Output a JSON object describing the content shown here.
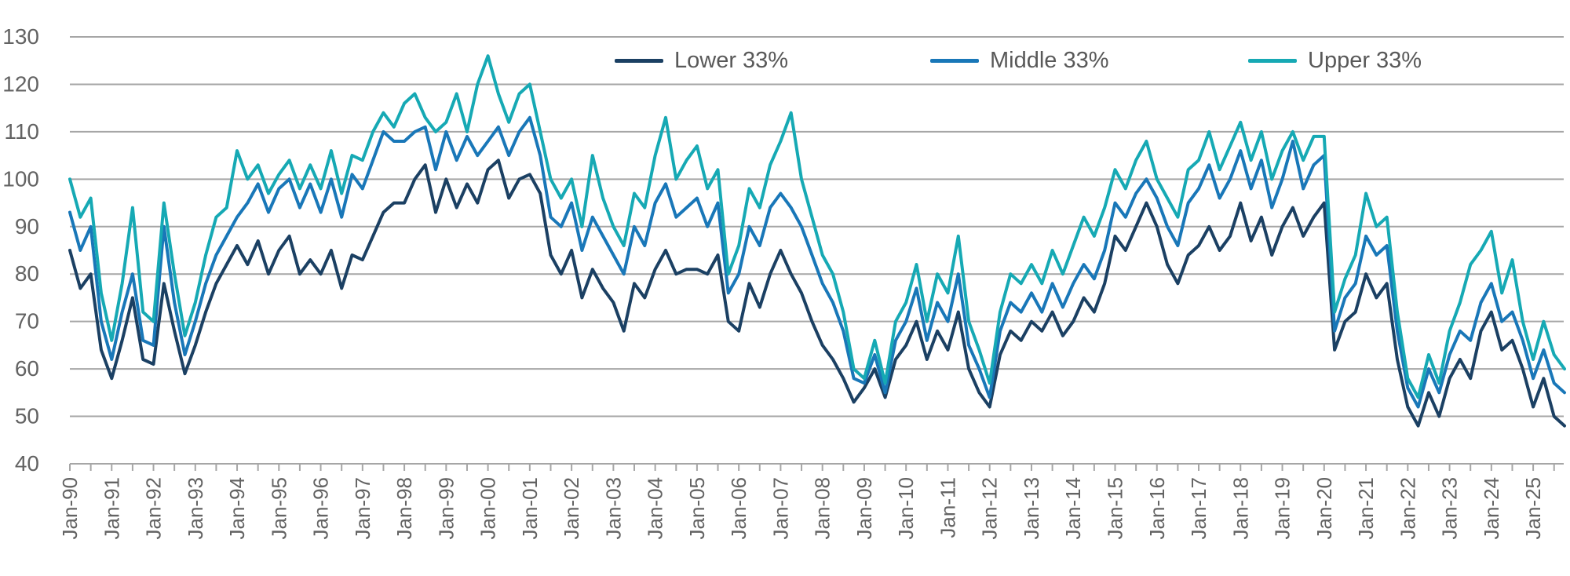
{
  "chart_data": {
    "type": "line",
    "title": "",
    "xlabel": "",
    "ylabel": "",
    "ylim": [
      40,
      130
    ],
    "grid": "horizontal",
    "legend_position": "top",
    "axis_color": "#a6a6a6",
    "label_color": "#636363",
    "x_start_year": 1990,
    "points_per_year": 4,
    "x_tick_labels": [
      "Jan-90",
      "Jan-91",
      "Jan-92",
      "Jan-93",
      "Jan-94",
      "Jan-95",
      "Jan-96",
      "Jan-97",
      "Jan-98",
      "Jan-99",
      "Jan-00",
      "Jan-01",
      "Jan-02",
      "Jan-03",
      "Jan-04",
      "Jan-05",
      "Jan-06",
      "Jan-07",
      "Jan-08",
      "Jan-09",
      "Jan-10",
      "Jan-11",
      "Jan-12",
      "Jan-13",
      "Jan-14",
      "Jan-15",
      "Jan-16",
      "Jan-17",
      "Jan-18",
      "Jan-19",
      "Jan-20",
      "Jan-21",
      "Jan-22",
      "Jan-23",
      "Jan-24",
      "Jan-25"
    ],
    "y_ticks": [
      130,
      120,
      110,
      100,
      90,
      80,
      70,
      60,
      50,
      40
    ],
    "series": [
      {
        "name": "Lower 33%",
        "color": "#1b4063",
        "values": [
          85,
          77,
          80,
          64,
          58,
          66,
          75,
          62,
          61,
          78,
          68,
          59,
          65,
          72,
          78,
          82,
          86,
          82,
          87,
          80,
          85,
          88,
          80,
          83,
          80,
          85,
          77,
          84,
          83,
          88,
          93,
          95,
          95,
          100,
          103,
          93,
          100,
          94,
          99,
          95,
          102,
          104,
          96,
          100,
          101,
          97,
          84,
          80,
          85,
          75,
          81,
          77,
          74,
          68,
          78,
          75,
          81,
          85,
          80,
          81,
          81,
          80,
          84,
          70,
          68,
          78,
          73,
          80,
          85,
          80,
          76,
          70,
          65,
          62,
          58,
          53,
          56,
          60,
          54,
          62,
          65,
          70,
          62,
          68,
          64,
          72,
          60,
          55,
          52,
          63,
          68,
          66,
          70,
          68,
          72,
          67,
          70,
          75,
          72,
          78,
          88,
          85,
          90,
          95,
          90,
          82,
          78,
          84,
          86,
          90,
          85,
          88,
          95,
          87,
          92,
          84,
          90,
          94,
          88,
          92,
          95,
          64,
          70,
          72,
          80,
          75,
          78,
          62,
          52,
          48,
          55,
          50,
          58,
          62,
          58,
          68,
          72,
          64,
          66,
          60,
          52,
          58,
          50,
          48
        ]
      },
      {
        "name": "Middle 33%",
        "color": "#1977b8",
        "values": [
          93,
          85,
          90,
          70,
          62,
          72,
          80,
          66,
          65,
          90,
          74,
          63,
          70,
          78,
          84,
          88,
          92,
          95,
          99,
          93,
          98,
          100,
          94,
          99,
          93,
          100,
          92,
          101,
          98,
          104,
          110,
          108,
          108,
          110,
          111,
          102,
          110,
          104,
          109,
          105,
          108,
          111,
          105,
          110,
          113,
          105,
          92,
          90,
          95,
          85,
          92,
          88,
          84,
          80,
          90,
          86,
          95,
          99,
          92,
          94,
          96,
          90,
          95,
          76,
          80,
          90,
          86,
          94,
          97,
          94,
          90,
          84,
          78,
          74,
          68,
          58,
          57,
          63,
          55,
          66,
          70,
          77,
          66,
          74,
          70,
          80,
          65,
          60,
          54,
          68,
          74,
          72,
          76,
          72,
          78,
          73,
          78,
          82,
          79,
          85,
          95,
          92,
          97,
          100,
          96,
          90,
          86,
          95,
          98,
          103,
          96,
          100,
          106,
          98,
          104,
          94,
          100,
          108,
          98,
          103,
          105,
          68,
          75,
          78,
          88,
          84,
          86,
          68,
          56,
          52,
          60,
          55,
          63,
          68,
          66,
          74,
          78,
          70,
          72,
          66,
          58,
          64,
          57,
          55
        ]
      },
      {
        "name": "Upper 33%",
        "color": "#16a9b4",
        "values": [
          100,
          92,
          96,
          76,
          66,
          78,
          94,
          72,
          70,
          95,
          80,
          67,
          74,
          84,
          92,
          94,
          106,
          100,
          103,
          97,
          101,
          104,
          98,
          103,
          98,
          106,
          97,
          105,
          104,
          110,
          114,
          111,
          116,
          118,
          113,
          110,
          112,
          118,
          110,
          120,
          126,
          118,
          112,
          118,
          120,
          110,
          100,
          96,
          100,
          90,
          105,
          96,
          90,
          86,
          97,
          94,
          105,
          113,
          100,
          104,
          107,
          98,
          102,
          80,
          86,
          98,
          94,
          103,
          108,
          114,
          100,
          92,
          84,
          80,
          72,
          60,
          58,
          66,
          57,
          70,
          74,
          82,
          70,
          80,
          76,
          88,
          70,
          64,
          57,
          72,
          80,
          78,
          82,
          78,
          85,
          80,
          86,
          92,
          88,
          94,
          102,
          98,
          104,
          108,
          100,
          96,
          92,
          102,
          104,
          110,
          102,
          107,
          112,
          104,
          110,
          100,
          106,
          110,
          104,
          109,
          109,
          72,
          79,
          84,
          97,
          90,
          92,
          72,
          58,
          54,
          63,
          57,
          68,
          74,
          82,
          85,
          89,
          76,
          83,
          70,
          62,
          70,
          63,
          60
        ]
      }
    ]
  },
  "legend": {
    "items": [
      {
        "label": "Lower 33%"
      },
      {
        "label": "Middle 33%"
      },
      {
        "label": "Upper 33%"
      }
    ]
  }
}
